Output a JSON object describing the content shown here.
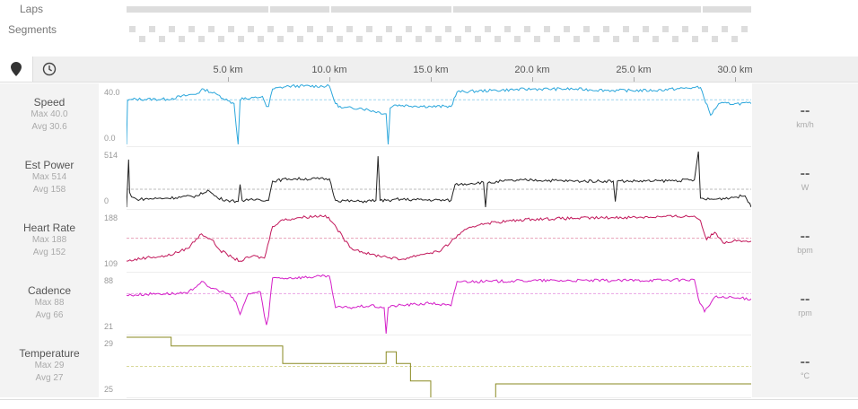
{
  "header": {
    "laps_label": "Laps",
    "segments_label": "Segments"
  },
  "toolbar": {
    "map_icon": "map-pin-icon",
    "time_icon": "clock-icon"
  },
  "chart_data": {
    "type": "line",
    "x_unit": "km",
    "xlim": [
      0,
      30.8
    ],
    "xticks": [
      "5.0 km",
      "10.0 km",
      "15.0 km",
      "20.0 km",
      "25.0 km",
      "30.0 km"
    ],
    "xtick_values": [
      5,
      10,
      15,
      20,
      25,
      30
    ],
    "laps": [
      [
        0,
        7.0
      ],
      [
        7.1,
        10.0
      ],
      [
        10.1,
        16.0
      ],
      [
        16.1,
        28.3
      ],
      [
        28.4,
        30.8
      ]
    ],
    "metrics": [
      {
        "key": "speed",
        "name": "Speed",
        "max_label": "Max 40.0",
        "avg_label": "Avg 30.6",
        "ytop_label": "40.0",
        "ybot_label": "0.0",
        "ylim": [
          0,
          40
        ],
        "avg": 30.6,
        "color": "#2ca7dc",
        "avg_color": "#9fd6ee",
        "current": "--",
        "unit": "km/h",
        "x": [
          0,
          0.05,
          0.3,
          2,
          3.5,
          3.8,
          4.5,
          5.0,
          5.3,
          5.5,
          5.6,
          5.7,
          6.0,
          6.7,
          6.9,
          7.0,
          7.2,
          8.0,
          10.0,
          10.3,
          10.6,
          11.5,
          12.8,
          12.9,
          13.0,
          13.2,
          15.0,
          16.0,
          16.3,
          18.0,
          20.0,
          22.0,
          24.0,
          26.0,
          28.0,
          28.3,
          28.8,
          29.2,
          30.0,
          30.8
        ],
        "y": [
          0,
          30,
          31,
          31,
          35,
          38,
          34,
          30,
          28,
          0,
          30,
          32,
          31,
          33,
          26,
          26,
          38,
          40,
          40,
          28,
          25,
          25,
          21,
          0,
          25,
          27,
          26,
          26,
          36,
          37,
          38,
          38,
          37,
          37,
          39,
          39,
          20,
          28,
          28,
          28
        ]
      },
      {
        "key": "power",
        "name": "Est Power",
        "max_label": "Max 514",
        "avg_label": "Avg 158",
        "ytop_label": "514",
        "ybot_label": "0",
        "ylim": [
          0,
          514
        ],
        "avg": 158,
        "color": "#222222",
        "avg_color": "#bbbbbb",
        "current": "--",
        "unit": "W",
        "x": [
          0,
          0.1,
          0.15,
          0.25,
          0.5,
          2,
          3.5,
          4.0,
          4.5,
          5.0,
          5.5,
          5.6,
          5.7,
          6.0,
          6.5,
          7.0,
          7.2,
          8.0,
          10.0,
          10.3,
          11.5,
          12.3,
          12.4,
          12.5,
          12.8,
          13.0,
          13.2,
          16.0,
          16.2,
          17.0,
          17.6,
          17.7,
          17.8,
          18.5,
          20,
          22,
          24.0,
          24.1,
          24.2,
          26,
          28.0,
          28.2,
          28.3,
          28.5,
          29,
          30.5,
          30.8
        ],
        "y": [
          0,
          420,
          130,
          90,
          70,
          80,
          100,
          150,
          80,
          60,
          50,
          200,
          60,
          60,
          70,
          60,
          230,
          250,
          250,
          60,
          50,
          60,
          450,
          60,
          60,
          50,
          70,
          60,
          200,
          210,
          220,
          0,
          210,
          230,
          240,
          230,
          230,
          50,
          230,
          230,
          240,
          490,
          80,
          70,
          70,
          100,
          0
        ]
      },
      {
        "key": "hr",
        "name": "Heart Rate",
        "max_label": "Max 188",
        "avg_label": "Avg 152",
        "ytop_label": "188",
        "ybot_label": "109",
        "ylim": [
          109,
          188
        ],
        "avg": 152,
        "color": "#c2185b",
        "avg_color": "#e8a0b8",
        "current": "--",
        "unit": "bpm",
        "x": [
          0,
          1.0,
          2.0,
          3.0,
          3.7,
          4.2,
          4.6,
          5.2,
          5.6,
          6.2,
          6.8,
          7.2,
          7.6,
          8.5,
          9.8,
          10.2,
          11.0,
          12.0,
          12.8,
          13.5,
          14.5,
          15.5,
          16.5,
          17.5,
          20,
          24,
          28.0,
          28.3,
          28.6,
          29.0,
          29.5,
          30,
          30.8
        ],
        "y": [
          121,
          126,
          128,
          138,
          158,
          150,
          136,
          126,
          121,
          128,
          125,
          168,
          176,
          180,
          183,
          172,
          140,
          130,
          127,
          123,
          130,
          135,
          160,
          172,
          178,
          180,
          182,
          176,
          150,
          160,
          145,
          150,
          148
        ]
      },
      {
        "key": "cadence",
        "name": "Cadence",
        "max_label": "Max 88",
        "avg_label": "Avg 66",
        "ytop_label": "88",
        "ybot_label": "21",
        "ylim": [
          21,
          88
        ],
        "avg": 66,
        "color": "#d41fc8",
        "avg_color": "#e9a3e4",
        "current": "--",
        "unit": "rpm",
        "x": [
          0,
          1.5,
          3.0,
          3.7,
          4.0,
          4.5,
          5.0,
          5.4,
          5.6,
          6.0,
          6.6,
          6.8,
          6.9,
          7.0,
          7.2,
          8.0,
          10.0,
          10.3,
          11.0,
          12.0,
          12.7,
          12.8,
          12.9,
          13.2,
          15.0,
          16.0,
          16.3,
          18,
          20,
          24,
          28.0,
          28.2,
          28.5,
          29,
          30.8
        ],
        "y": [
          64,
          66,
          66,
          80,
          74,
          70,
          66,
          56,
          42,
          66,
          68,
          40,
          30,
          40,
          84,
          84,
          86,
          50,
          50,
          52,
          50,
          20,
          50,
          52,
          55,
          52,
          80,
          80,
          81,
          81,
          82,
          60,
          45,
          62,
          60
        ]
      },
      {
        "key": "temp",
        "name": "Temperature",
        "max_label": "Max 29",
        "avg_label": "Avg 27",
        "ytop_label": "29",
        "ybot_label": "25",
        "ylim": [
          25,
          29
        ],
        "avg": 27,
        "color": "#8a8a22",
        "avg_color": "#d9d99a",
        "current": "--",
        "unit": "°C",
        "step": true,
        "x": [
          0,
          2.2,
          7.7,
          12.8,
          13.3,
          14.0,
          15.0,
          18.2,
          30.8
        ],
        "y": [
          29,
          28.4,
          27.2,
          28.0,
          27.2,
          26.0,
          24.8,
          25.8,
          25.8
        ]
      }
    ]
  }
}
